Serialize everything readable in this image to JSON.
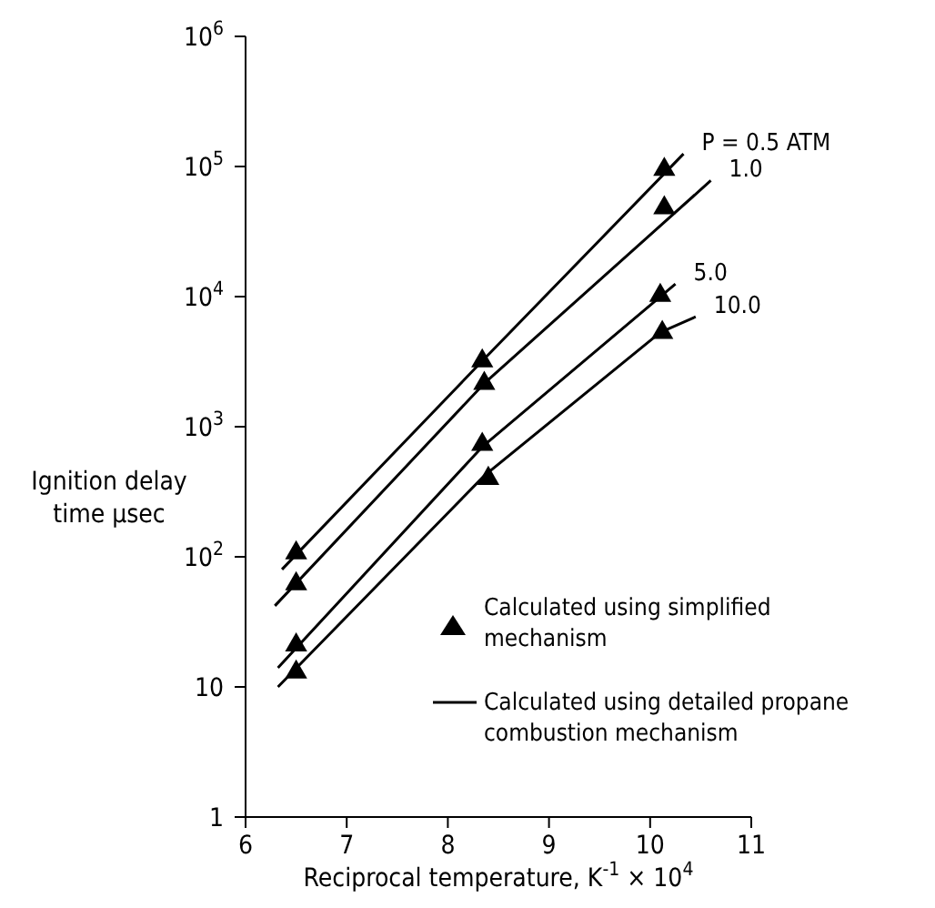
{
  "chart_data": {
    "type": "line",
    "xlabel": "Reciprocal temperature, K$^{-1}$ × 10$^{4}$",
    "ylabel": "Ignition delay time µsec",
    "log": "y",
    "xlim": [
      6,
      11
    ],
    "xticks": [
      6,
      7,
      8,
      9,
      10,
      11
    ],
    "ylim": [
      1,
      1000000
    ],
    "yticks": [
      1,
      10,
      {
        "value": 100,
        "label": "10$^{2}$"
      },
      {
        "value": 1000,
        "label": "10$^{3}$"
      },
      {
        "value": 10000,
        "label": "10$^{4}$"
      },
      {
        "value": 100000,
        "label": "10$^{5}$"
      },
      {
        "value": 1000000,
        "label": "10$^{6}$"
      }
    ],
    "legend": "bottom right",
    "color": "#000000",
    "series": [
      {
        "name": "P = 0.5 ATM",
        "color": "#000000",
        "x": [
          6.36,
          8.34,
          10.33
        ],
        "values": [
          80,
          3200,
          125000
        ]
      },
      {
        "name": "1.0",
        "color": "#000000",
        "x": [
          6.29,
          8.36,
          10.6
        ],
        "values": [
          42,
          2150,
          78000
        ]
      },
      {
        "name": "5.0",
        "color": "#000000",
        "x": [
          6.32,
          8.34,
          10.25
        ],
        "values": [
          14,
          700,
          12500
        ]
      },
      {
        "name": "10.0",
        "color": "#000000",
        "x": [
          6.32,
          8.36,
          10.1,
          10.45
        ],
        "values": [
          10,
          420,
          5300,
          7000
        ]
      },
      {
        "name": "Calculated using simplified mechanism",
        "type": "scatter",
        "marker": "triangle",
        "color": "#000000",
        "x": [
          6.5,
          8.34,
          10.14,
          6.5,
          8.36,
          10.14,
          6.5,
          8.34,
          10.1,
          6.5,
          8.4,
          10.12
        ],
        "values": [
          107,
          3200,
          95000,
          62,
          2150,
          48000,
          21,
          730,
          10200,
          13,
          400,
          5300
        ]
      }
    ],
    "annotations": [
      "Calculated using detailed propane combustion mechanism"
    ]
  }
}
